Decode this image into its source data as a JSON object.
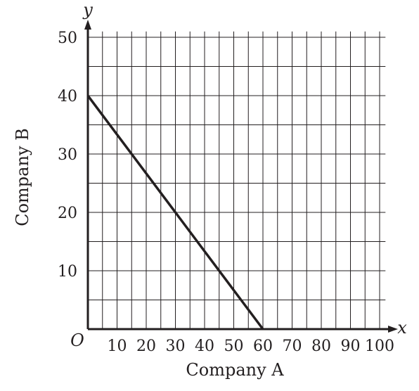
{
  "chart_data": {
    "type": "line",
    "xlabel": "Company A",
    "ylabel": "Company B",
    "x_var": "x",
    "y_var": "y",
    "origin_label": "O",
    "xlim": [
      0,
      102
    ],
    "ylim": [
      0,
      51
    ],
    "grid": true,
    "grid_step": 5,
    "x_ticks": [
      10,
      20,
      30,
      40,
      50,
      60,
      70,
      80,
      90,
      100
    ],
    "y_ticks": [
      10,
      20,
      30,
      40,
      50
    ],
    "series": [
      {
        "x": [
          0,
          60
        ],
        "y": [
          40,
          0
        ]
      }
    ]
  }
}
